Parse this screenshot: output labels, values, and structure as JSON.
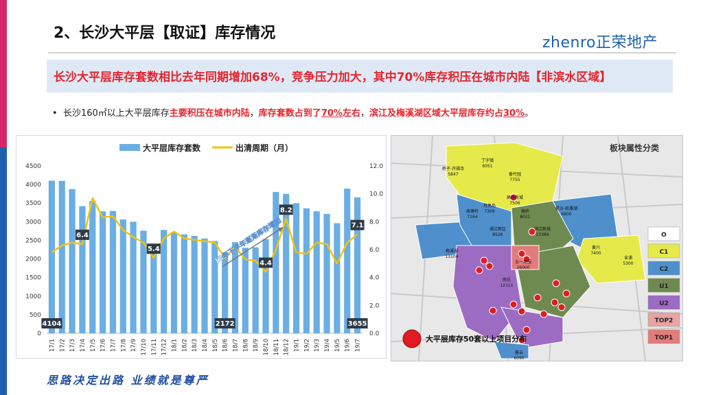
{
  "header": {
    "title": "2、长沙大平层【取证】库存情况",
    "logo_text": "zhenro正荣地产"
  },
  "banner": {
    "text": "长沙大平层库存套数相比去年同期增加68%，竞争压力加大，其中70%库存积压在城市内陆【非滨水区域】"
  },
  "bullet": {
    "prefix": "长沙160㎡以上大平层库存",
    "h1": "主要积压在城市内陆",
    "s1": "，",
    "h2": "库存套数占到了",
    "u1": "70%",
    "h3": "左右",
    "s2": "，",
    "h4": "滨江及梅溪湖区域大平层库存约占",
    "u2": "30%",
    "end": "。"
  },
  "chart_data": {
    "type": "bar",
    "categories": [
      "17/1",
      "17/2",
      "17/3",
      "17/4",
      "17/5",
      "17/6",
      "17/7",
      "17/8",
      "17/9",
      "17/10",
      "17/11",
      "17/12",
      "18/1",
      "18/2",
      "18/3",
      "18/4",
      "18/5",
      "18/6",
      "18/7",
      "18/8",
      "18/9",
      "18/10",
      "18/11",
      "18/12",
      "19/1",
      "19/2",
      "19/3",
      "19/4",
      "19/5",
      "19/6",
      "19/7"
    ],
    "series": [
      {
        "name": "大平层库存套数",
        "axis": "left",
        "type": "bar",
        "values": [
          4104,
          4100,
          3880,
          3420,
          3560,
          3280,
          3290,
          3060,
          3000,
          2760,
          2380,
          2780,
          2720,
          2660,
          2620,
          2550,
          2480,
          2172,
          2450,
          2300,
          2310,
          2530,
          3800,
          3750,
          3500,
          3360,
          3280,
          3210,
          2960,
          3890,
          3655
        ]
      },
      {
        "name": "出清周期（月）",
        "axis": "right",
        "type": "line",
        "values": [
          5.8,
          6.3,
          6.5,
          6.4,
          9.7,
          8.3,
          8.4,
          7.4,
          6.9,
          6.5,
          5.4,
          6.8,
          7.3,
          6.8,
          6.7,
          6.6,
          6.5,
          5.4,
          6.2,
          5.3,
          5.2,
          4.4,
          6.0,
          8.2,
          5.8,
          5.7,
          6.5,
          6.4,
          5.0,
          6.5,
          7.1
        ]
      }
    ],
    "ylim_left": [
      0,
      4500
    ],
    "yticks_left": [
      "0",
      "500",
      "1000",
      "1500",
      "2000",
      "2500",
      "3000",
      "3500",
      "4000",
      "4500"
    ],
    "ylim_right": [
      0,
      12
    ],
    "yticks_right": [
      "0.0",
      "2.0",
      "4.0",
      "6.0",
      "8.0",
      "10.0",
      "12.0"
    ],
    "bar_labels": [
      {
        "index": 0,
        "text": "4104"
      },
      {
        "index": 17,
        "text": "2172"
      },
      {
        "index": 30,
        "text": "3655"
      }
    ],
    "line_labels": [
      {
        "index": 3,
        "text": "6.4"
      },
      {
        "index": 10,
        "text": "5.4"
      },
      {
        "index": 21,
        "text": "4.4"
      },
      {
        "index": 23,
        "text": "8.2"
      },
      {
        "index": 30,
        "text": "7.1"
      }
    ],
    "annotation": "18年下半年逐渐库存增加",
    "legend_position": "top",
    "colors": {
      "bar": "#6aaee4",
      "line": "#f4c20d",
      "label_bg": "#2e3a46"
    }
  },
  "map": {
    "title": "板块属性分类",
    "legend": [
      {
        "label": "O",
        "color": "#ffffff"
      },
      {
        "label": "C1",
        "color": "#e5ea4a"
      },
      {
        "label": "C2",
        "color": "#4f8fcc"
      },
      {
        "label": "U1",
        "color": "#6f8a50"
      },
      {
        "label": "U2",
        "color": "#9b6cc2"
      },
      {
        "label": "TOP2",
        "color": "#e8a3a3"
      },
      {
        "label": "TOP1",
        "color": "#e27b7b"
      }
    ],
    "marker_legend": "大平层库存50套以上项目分布",
    "regions": [
      {
        "name": "丁字镇",
        "value": "6051"
      },
      {
        "name": "桥子-开福寺",
        "value": "5847"
      },
      {
        "name": "香竹园",
        "value": "7755"
      },
      {
        "name": "高铁新城",
        "value": "7506"
      },
      {
        "name": "月亮岛",
        "value": "7309"
      },
      {
        "name": "高塘岭",
        "value": "7164"
      },
      {
        "name": "高岭",
        "value": "8021"
      },
      {
        "name": "星沙-松雅湖",
        "value": "6800"
      },
      {
        "name": "湘江新区",
        "value": "8526"
      },
      {
        "name": "滨江新城",
        "value": "13389"
      },
      {
        "name": "梅溪湖",
        "value": "13104"
      },
      {
        "name": "五一商圈",
        "value": "26000"
      },
      {
        "name": "雨花",
        "value": "12111"
      },
      {
        "name": "黄兴",
        "value": "7400"
      },
      {
        "name": "暮云",
        "value": "6090"
      },
      {
        "name": "含浦",
        "value": "5300"
      }
    ],
    "colors": {
      "road": "#c9c9c9",
      "bg": "#e8e8e8",
      "marker": "#e11b22"
    }
  },
  "footer": {
    "slogan": "思路决定出路 业绩就是尊严"
  }
}
